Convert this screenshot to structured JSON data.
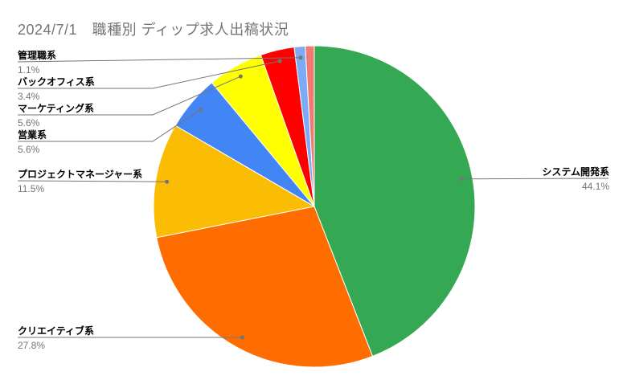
{
  "title": "2024/7/1　職種別 ディップ求人出稿状況",
  "styles": {
    "background": "#FFFFFF",
    "title_color": "#757575",
    "label_color": "#000000",
    "pct_color": "#757575",
    "line_color": "#757575"
  },
  "chart_data": {
    "type": "pie",
    "title": "2024/7/1　職種別 ディップ求人出稿状況",
    "legend_position": "labeled-callouts",
    "start_angle_deg": 0,
    "direction": "clockwise",
    "slices": [
      {
        "label": "システム開発系",
        "value": 44.1,
        "pct_label": "44.1%",
        "color": "#34A853"
      },
      {
        "label": "クリエイティブ系",
        "value": 27.8,
        "pct_label": "27.8%",
        "color": "#FF6D01"
      },
      {
        "label": "プロジェクトマネージャー系",
        "value": 11.5,
        "pct_label": "11.5%",
        "color": "#FBBC04"
      },
      {
        "label": "営業系",
        "value": 5.6,
        "pct_label": "5.6%",
        "color": "#4285F4"
      },
      {
        "label": "マーケティング系",
        "value": 5.6,
        "pct_label": "5.6%",
        "color": "#FFFF00"
      },
      {
        "label": "バックオフィス系",
        "value": 3.4,
        "pct_label": "3.4%",
        "color": "#FF0000"
      },
      {
        "label": "管理職系",
        "value": 1.1,
        "pct_label": "1.1%",
        "color": "#7BAAF7"
      },
      {
        "label": "",
        "value": 0.9,
        "pct_label": "",
        "color": "#F07B72"
      }
    ]
  }
}
